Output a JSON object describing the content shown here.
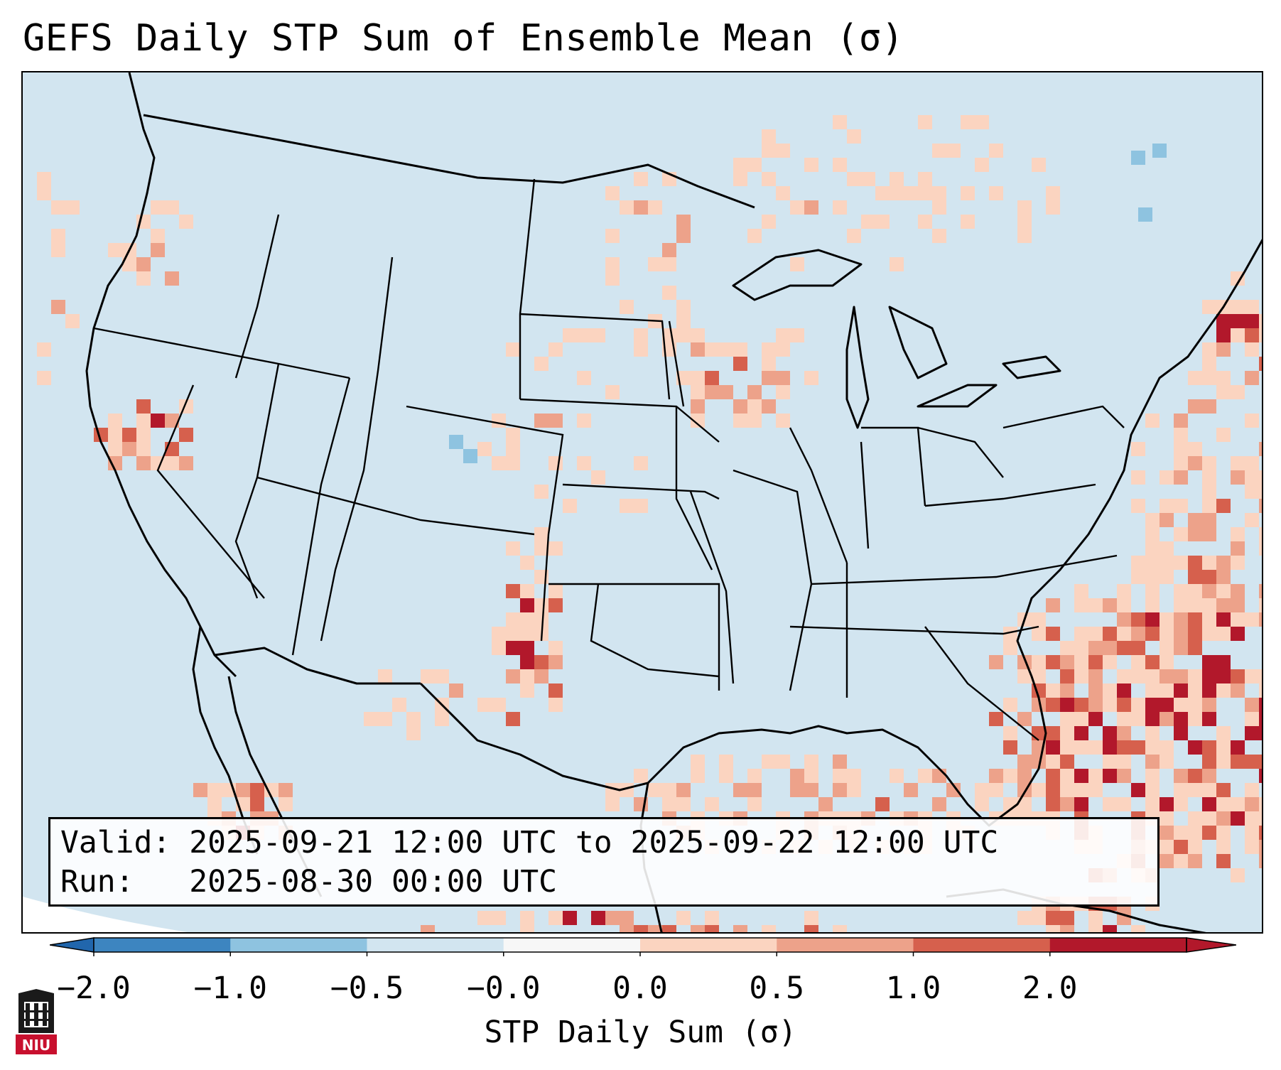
{
  "title": "GEFS Daily STP Sum of Ensemble Mean (σ)",
  "info": {
    "valid_label": "Valid:",
    "valid_value": "2025-09-21 12:00 UTC to 2025-09-22 12:00 UTC",
    "run_label": "Run:",
    "run_value": "2025-08-30 00:00 UTC"
  },
  "colorbar": {
    "label": "STP Daily Sum (σ)",
    "ticks": [
      "−2.0",
      "−1.0",
      "−0.5",
      "−0.0",
      "0.0",
      "0.5",
      "1.0",
      "2.0"
    ],
    "colors": [
      "#3d85c0",
      "#8ec3e0",
      "#d2e5f0",
      "#f7f7f7",
      "#fbd4c0",
      "#eda28a",
      "#d6604d",
      "#b2182b"
    ],
    "extend_low_color": "#2166ac",
    "extend_high_color": "#b2182b"
  },
  "map": {
    "background_color": "#d2e5f0",
    "land_outline_color": "#000000"
  },
  "logo": {
    "text": "NIU",
    "color": "#c8102e"
  }
}
